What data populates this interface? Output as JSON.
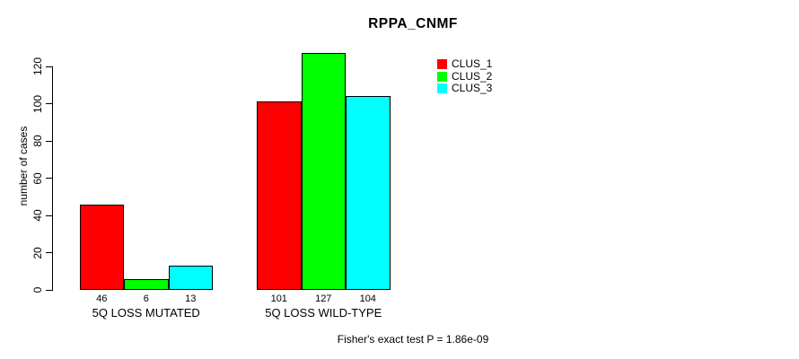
{
  "chart_data": {
    "type": "bar",
    "title": "RPPA_CNMF",
    "xlabel": "",
    "ylabel": "number of cases",
    "categories": [
      "5Q LOSS MUTATED",
      "5Q LOSS WILD-TYPE"
    ],
    "series": [
      {
        "name": "CLUS_1",
        "color": "#ff0000",
        "values": [
          46,
          101
        ]
      },
      {
        "name": "CLUS_2",
        "color": "#00ff00",
        "values": [
          6,
          127
        ]
      },
      {
        "name": "CLUS_3",
        "color": "#00ffff",
        "values": [
          13,
          104
        ]
      }
    ],
    "bar_value_labels": [
      [
        "46",
        "6",
        "13"
      ],
      [
        "101",
        "127",
        "104"
      ]
    ],
    "yticks": [
      0,
      20,
      40,
      60,
      80,
      100,
      120
    ],
    "ylim": [
      0,
      130
    ],
    "grid": false,
    "legend_position": "top-right",
    "annotation": "Fisher's exact test P = 1.86e-09"
  }
}
